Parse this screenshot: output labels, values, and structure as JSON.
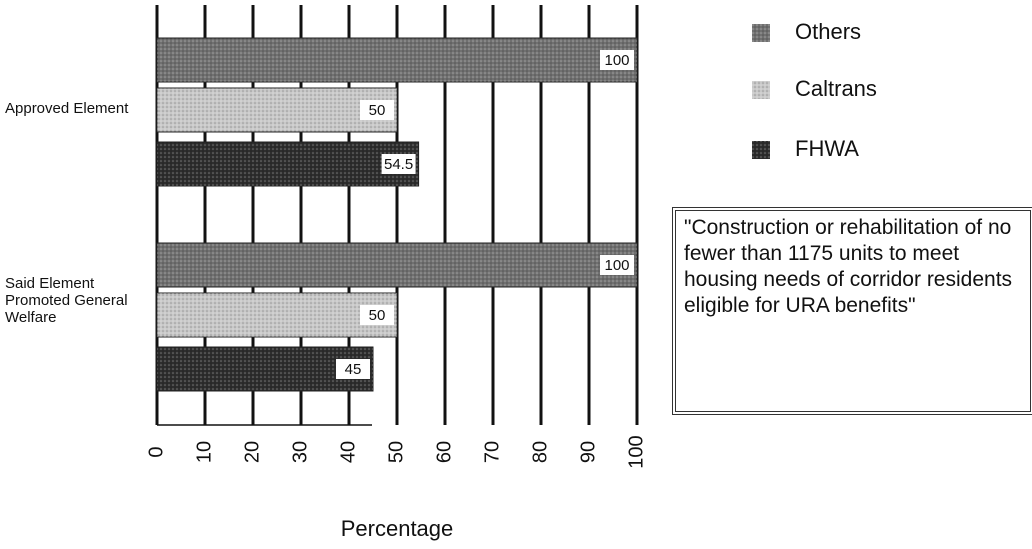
{
  "chart_data": {
    "type": "barh",
    "categories": [
      "Approved Element",
      "Said Element Promoted General Welfare"
    ],
    "series": [
      {
        "name": "Others",
        "color": "#707070",
        "values": [
          100,
          100
        ]
      },
      {
        "name": "Caltrans",
        "color": "#c8c8c8",
        "values": [
          50,
          50
        ]
      },
      {
        "name": "FHWA",
        "color": "#2e2e2e",
        "values": [
          54.5,
          45
        ]
      }
    ],
    "xlabel": "Percentage",
    "xlim": [
      0,
      100
    ],
    "xticks": [
      0,
      10,
      20,
      30,
      40,
      50,
      60,
      70,
      80,
      90,
      100
    ],
    "grid": true,
    "legend": "upper right",
    "annotation": "\"Construction or rehabilitation of no fewer than 1175 units to meet housing needs of corridor residents eligible for URA benefits\""
  }
}
